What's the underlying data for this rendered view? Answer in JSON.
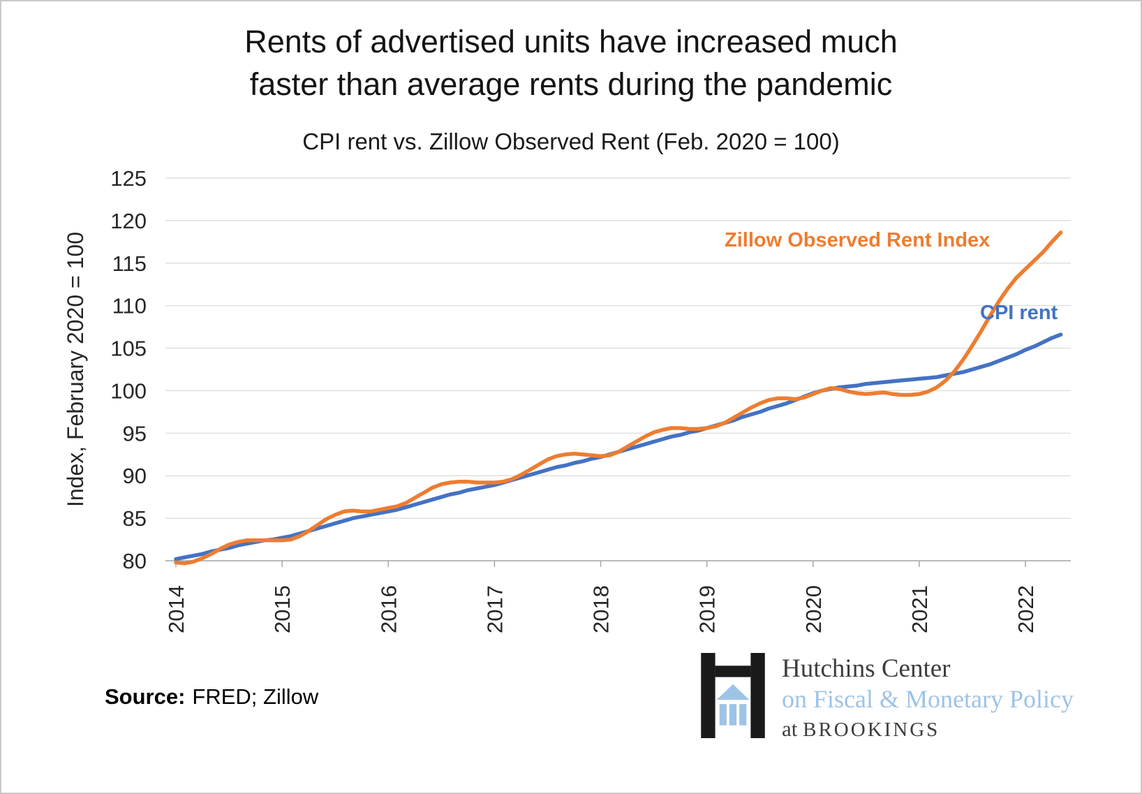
{
  "title_line1": "Rents of advertised units have increased much",
  "title_line2": "faster than average rents during the pandemic",
  "subtitle": "CPI rent vs. Zillow Observed Rent (Feb. 2020 = 100)",
  "y_axis_label": "Index, February 2020 = 100",
  "annotations": {
    "zillow": "Zillow Observed Rent Index",
    "cpi": "CPI rent"
  },
  "source_label": "Source:",
  "source_value": "FRED; Zillow",
  "logo": {
    "line1": "Hutchins Center",
    "line2": "on Fiscal & Monetary Policy",
    "line3_prefix": "at ",
    "line3_name": "BROOKINGS"
  },
  "colors": {
    "zillow": "#ED7D31",
    "cpi": "#4472C4",
    "grid": "#D9D9D9",
    "axis": "#A6A6A6",
    "text": "#262626",
    "logo_blue": "#9DC3E6",
    "logo_black": "#1A1A1A"
  },
  "chart_data": {
    "type": "line",
    "title": "CPI rent vs. Zillow Observed Rent (Feb. 2020 = 100)",
    "ylabel": "Index, February 2020 = 100",
    "ylim": [
      80,
      125
    ],
    "y_ticks": [
      80,
      85,
      90,
      95,
      100,
      105,
      110,
      115,
      120,
      125
    ],
    "x_ticks": [
      2014,
      2015,
      2016,
      2017,
      2018,
      2019,
      2020,
      2021,
      2022
    ],
    "x_start": "2014-01",
    "x_frequency": "monthly",
    "grid": "horizontal",
    "legend": "inline-annotations",
    "series": [
      {
        "name": "CPI rent",
        "color": "#4472C4",
        "values": [
          80.2,
          80.4,
          80.6,
          80.8,
          81.1,
          81.3,
          81.5,
          81.8,
          82.0,
          82.2,
          82.4,
          82.5,
          82.7,
          82.9,
          83.2,
          83.5,
          83.8,
          84.1,
          84.4,
          84.7,
          85.0,
          85.2,
          85.4,
          85.6,
          85.8,
          86.0,
          86.3,
          86.6,
          86.9,
          87.2,
          87.5,
          87.8,
          88.0,
          88.3,
          88.5,
          88.7,
          88.9,
          89.2,
          89.5,
          89.8,
          90.1,
          90.4,
          90.7,
          91.0,
          91.2,
          91.5,
          91.7,
          92.0,
          92.2,
          92.5,
          92.8,
          93.1,
          93.4,
          93.7,
          94.0,
          94.3,
          94.6,
          94.8,
          95.1,
          95.3,
          95.6,
          95.9,
          96.2,
          96.5,
          96.9,
          97.2,
          97.5,
          97.9,
          98.2,
          98.5,
          98.9,
          99.3,
          99.7,
          100.0,
          100.2,
          100.4,
          100.5,
          100.6,
          100.8,
          100.9,
          101.0,
          101.1,
          101.2,
          101.3,
          101.4,
          101.5,
          101.6,
          101.8,
          102.0,
          102.2,
          102.5,
          102.8,
          103.1,
          103.5,
          103.9,
          104.3,
          104.8,
          105.2,
          105.7,
          106.2,
          106.6
        ]
      },
      {
        "name": "Zillow Observed Rent Index",
        "color": "#ED7D31",
        "values": [
          79.8,
          79.7,
          79.9,
          80.3,
          80.8,
          81.4,
          81.9,
          82.2,
          82.4,
          82.4,
          82.4,
          82.4,
          82.4,
          82.5,
          82.9,
          83.5,
          84.2,
          84.9,
          85.4,
          85.8,
          85.9,
          85.8,
          85.8,
          86.0,
          86.2,
          86.4,
          86.8,
          87.4,
          88.0,
          88.6,
          89.0,
          89.2,
          89.3,
          89.3,
          89.2,
          89.2,
          89.2,
          89.3,
          89.6,
          90.1,
          90.7,
          91.3,
          91.9,
          92.3,
          92.5,
          92.6,
          92.5,
          92.4,
          92.3,
          92.4,
          92.8,
          93.4,
          94.0,
          94.6,
          95.1,
          95.4,
          95.6,
          95.6,
          95.5,
          95.5,
          95.6,
          95.8,
          96.2,
          96.8,
          97.4,
          98.0,
          98.5,
          98.9,
          99.1,
          99.1,
          99.0,
          99.2,
          99.6,
          100.0,
          100.3,
          100.2,
          99.9,
          99.7,
          99.6,
          99.7,
          99.8,
          99.6,
          99.5,
          99.5,
          99.6,
          99.9,
          100.4,
          101.2,
          102.3,
          103.7,
          105.3,
          107.0,
          108.8,
          110.5,
          112.0,
          113.3,
          114.3,
          115.3,
          116.3,
          117.5,
          118.6
        ]
      }
    ]
  }
}
